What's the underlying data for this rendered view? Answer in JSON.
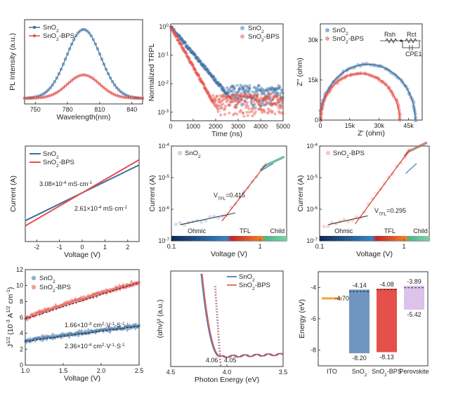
{
  "colors": {
    "sno2": "#3d6fa3",
    "bps": "#e5514a",
    "sno2_light": "#9fb9d6",
    "bps_light": "#f3a29c",
    "ito": "#f4a23c",
    "pero": "#dcc3ea",
    "child": "#3aa779",
    "tfl": "#d93a2f"
  },
  "chart_data": [
    {
      "id": "pl",
      "type": "line",
      "ylabel": "PL Intensity (a.u.)",
      "xlabel": "Wavelength(nm)",
      "xlim": [
        740,
        850
      ],
      "xticks": [
        "750",
        "780",
        "810",
        "840"
      ],
      "peak_nm": 795,
      "series": [
        {
          "name": "SnO2",
          "sub": "2",
          "base": "SnO",
          "suffix": "",
          "amplitude": 1.0,
          "width": 16
        },
        {
          "name": "SnO2-BPS",
          "base": "SnO",
          "sub": "2",
          "suffix": "-BPS",
          "amplitude": 0.34,
          "width": 15
        }
      ]
    },
    {
      "id": "trpl",
      "type": "scatter",
      "ylabel": "Normalized TRPL",
      "xlabel": "Time (ns)",
      "xlim": [
        0,
        5000
      ],
      "ylim_log": [
        -3.3,
        0.1
      ],
      "xticks": [
        "0",
        "1000",
        "2000",
        "3000",
        "4000",
        "5000"
      ],
      "yticks": [
        "10^0",
        "10^-1",
        "10^-2",
        "10^-3"
      ],
      "series": [
        {
          "name": "SnO2",
          "base": "SnO",
          "sub": "2",
          "suffix": "",
          "tau_ns": 460,
          "floor": 0.003
        },
        {
          "name": "SnO2-BPS",
          "base": "SnO",
          "sub": "2",
          "suffix": "-BPS",
          "tau_ns": 310,
          "floor": 0.0015
        }
      ]
    },
    {
      "id": "eis",
      "type": "scatter",
      "ylabel": "Z'' (ohm)",
      "xlabel": "Z' (ohm)",
      "xlim": [
        0,
        52000
      ],
      "ylim": [
        0,
        36000
      ],
      "xticks": [
        "0",
        "15k",
        "30k",
        "45k"
      ],
      "yticks": [
        "0",
        "15k",
        "30k"
      ],
      "circuit": {
        "r1": "Rsh",
        "r2": "Rct",
        "c": "CPE1"
      },
      "series": [
        {
          "name": "SnO2",
          "base": "SnO",
          "sub": "2",
          "suffix": "",
          "diameter": 48500
        },
        {
          "name": "SnO2-BPS",
          "base": "SnO",
          "sub": "2",
          "suffix": "-BPS",
          "diameter": 40500
        }
      ]
    },
    {
      "id": "iv",
      "type": "line",
      "ylabel": "Current (A)",
      "xlabel": "Voltage (V)",
      "xlim": [
        -2.5,
        2.5
      ],
      "xticks": [
        "-2",
        "-1",
        "0",
        "1",
        "2"
      ],
      "series": [
        {
          "name": "SnO2",
          "base": "SnO",
          "sub": "2",
          "suffix": "",
          "slope": 0.7
        },
        {
          "name": "SnO2-BPS",
          "base": "SnO",
          "sub": "2",
          "suffix": "-BPS",
          "slope": 0.83
        }
      ],
      "annotations": [
        {
          "text": "3.08×10",
          "sup": "-4",
          "rest": " mS·cm",
          "sup2": "-1",
          "series": "SnO2-BPS"
        },
        {
          "text": "2.61×10",
          "sup": "-4",
          "rest": " mS·cm",
          "sup2": "-1",
          "series": "SnO2"
        }
      ]
    },
    {
      "id": "sclc1",
      "type": "scatter",
      "ylabel": "Current (A)",
      "xlabel": "Voltage (V)",
      "xlim_log": [
        -1,
        0.3
      ],
      "ylim_log": [
        -7,
        -4
      ],
      "xticks": [
        "0.1",
        "1"
      ],
      "yticks": [
        "10^-4",
        "10^-5",
        "10^-6",
        "10^-7"
      ],
      "legend": {
        "base": "SnO",
        "sub": "2",
        "suffix": ""
      },
      "vtfl": {
        "label": "V",
        "sub": "TFL",
        "value": "=0.415"
      },
      "regions": [
        "Ohmic",
        "TFL",
        "Child"
      ]
    },
    {
      "id": "sclc2",
      "type": "scatter",
      "ylabel": "Current (A)",
      "xlabel": "Voltage (V)",
      "xlim_log": [
        -1,
        0.3
      ],
      "ylim_log": [
        -7,
        -4
      ],
      "xticks": [
        "0.1",
        "1"
      ],
      "yticks": [
        "10^-4",
        "10^-5",
        "10^-6",
        "10^-7"
      ],
      "legend": {
        "base": "SnO",
        "sub": "2",
        "suffix": "-BPS"
      },
      "vtfl": {
        "label": "V",
        "sub": "TFL",
        "value": "=0.295"
      },
      "regions": [
        "Ohmic",
        "TFL",
        "Child"
      ]
    },
    {
      "id": "mobility",
      "type": "line",
      "ylabel": "J^1/2 (10^-3 A^1/2 cm^-1)",
      "xlabel": "Voltage (V)",
      "xlim": [
        1.0,
        2.5
      ],
      "ylim": [
        0,
        12
      ],
      "xticks": [
        "1.0",
        "1.5",
        "2.0",
        "2.5"
      ],
      "yticks": [
        "0",
        "2",
        "4",
        "6",
        "8",
        "10",
        "12"
      ],
      "series": [
        {
          "name": "SnO2",
          "base": "SnO",
          "sub": "2",
          "suffix": "",
          "y_start": 3.0,
          "y_end": 4.9
        },
        {
          "name": "SnO2-BPS",
          "base": "SnO",
          "sub": "2",
          "suffix": "-BPS",
          "y_start": 5.8,
          "y_end": 10.4
        }
      ],
      "annotations": [
        {
          "text": "1.66×10",
          "sup": "-3",
          "rest": " cm",
          "sup2": "2",
          "rest2": "·V",
          "sup3": "-1",
          "rest3": "·S",
          "sup4": "-1"
        },
        {
          "text": "2.36×10",
          "sup": "-4",
          "rest": " cm",
          "sup2": "2",
          "rest2": "·V",
          "sup3": "-1",
          "rest3": "·S",
          "sup4": "-1"
        }
      ]
    },
    {
      "id": "tauc",
      "type": "line",
      "ylabel": "(αhν)² (a.u.)",
      "xlabel": "Photon Energy (eV)",
      "xlim": [
        4.5,
        3.5
      ],
      "xticks": [
        "4.5",
        "4.0",
        "3.5"
      ],
      "series": [
        {
          "name": "SnO2",
          "base": "SnO",
          "sub": "2",
          "suffix": "",
          "edge": 4.06
        },
        {
          "name": "SnO2-BPS",
          "base": "SnO",
          "sub": "2",
          "suffix": "-BPS",
          "edge": 4.05
        }
      ],
      "edge_labels": [
        "4.06",
        "4.05"
      ]
    },
    {
      "id": "energy",
      "type": "bar",
      "ylabel": "Energy (eV)",
      "ylim": [
        -9,
        -3
      ],
      "yticks": [
        "-4",
        "-6",
        "-8"
      ],
      "categories": [
        "ITO",
        "SnO2",
        "SnO2-BPS",
        "Perovskite"
      ],
      "category_labels": [
        {
          "base": "ITO",
          "sub": "",
          "suffix": ""
        },
        {
          "base": "SnO",
          "sub": "2",
          "suffix": ""
        },
        {
          "base": "SnO",
          "sub": "2",
          "suffix": "-BPS"
        },
        {
          "base": "Perovskite",
          "sub": "",
          "suffix": ""
        }
      ],
      "levels": [
        {
          "top": -4.7,
          "bottom": null,
          "fermi": null
        },
        {
          "top": -4.14,
          "bottom": -8.2,
          "fermi": -4.26
        },
        {
          "top": -4.08,
          "bottom": -8.13,
          "fermi": -4.14
        },
        {
          "top": -3.89,
          "bottom": -5.42,
          "fermi": -4.02
        }
      ],
      "level_labels": [
        [
          "-4.70"
        ],
        [
          "-4.14",
          "-8.20"
        ],
        [
          "-4.08",
          "-8.13"
        ],
        [
          "-3.89",
          "-5.42"
        ]
      ]
    }
  ]
}
